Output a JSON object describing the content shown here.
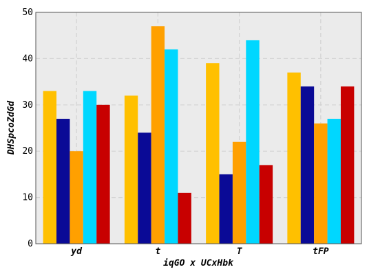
{
  "chart_data": {
    "type": "bar",
    "title": "",
    "xlabel": "iqGO x UCxHbk",
    "ylabel": "DHSpcoZdGd",
    "categories": [
      "yd",
      "t",
      "T",
      "tFP"
    ],
    "series": [
      {
        "values": [
          33,
          32,
          39,
          37
        ],
        "color": "#ffc000"
      },
      {
        "values": [
          27,
          24,
          15,
          34
        ],
        "color": "#0a0a96"
      },
      {
        "values": [
          20,
          47,
          22,
          26
        ],
        "color": "#ffa000"
      },
      {
        "values": [
          33,
          42,
          44,
          27
        ],
        "color": "#00d7ff"
      },
      {
        "values": [
          30,
          11,
          17,
          34
        ],
        "color": "#c80000"
      }
    ],
    "ylim": [
      0,
      50
    ],
    "yticks": [
      0,
      10,
      20,
      30,
      40,
      50
    ],
    "grid": true,
    "legend": "none",
    "plot_background": "#ebebeb",
    "grid_color": "#d2d2d2"
  }
}
